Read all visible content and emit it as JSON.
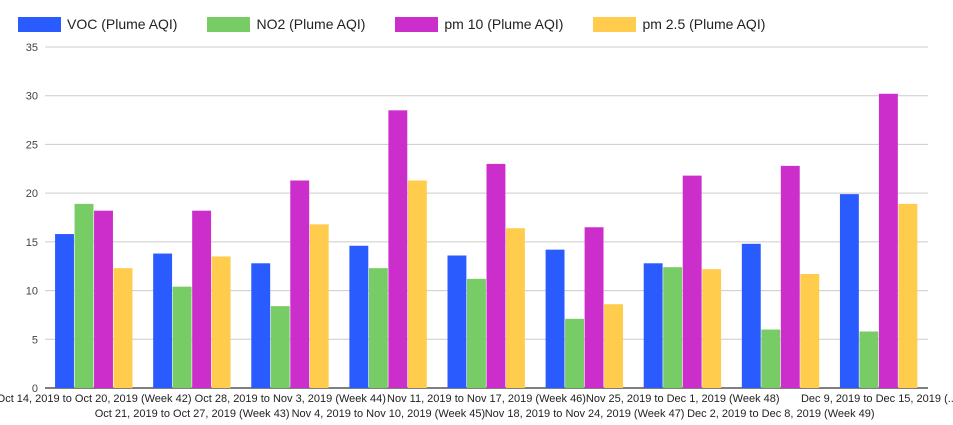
{
  "chart_data": {
    "type": "bar",
    "title": "",
    "xlabel": "",
    "ylabel": "",
    "ylim": [
      0,
      35
    ],
    "yticks": [
      0,
      5,
      10,
      15,
      20,
      25,
      30,
      35
    ],
    "grid": true,
    "legend_position": "top-left",
    "categories": [
      "Oct 14, 2019 to Oct 20, 2019 (Week 42)",
      "Oct 21, 2019 to Oct 27, 2019 (Week 43)",
      "Oct 28, 2019 to Nov 3, 2019 (Week 44)",
      "Nov 4, 2019 to Nov 10, 2019 (Week 45)",
      "Nov 11, 2019 to Nov 17, 2019 (Week 46)",
      "Nov 18, 2019 to Nov 24, 2019 (Week 47)",
      "Nov 25, 2019 to Dec 1, 2019 (Week 48)",
      "Dec 2, 2019 to Dec 8, 2019 (Week 49)",
      "Dec 9, 2019 to Dec 15, 2019 (..."
    ],
    "series": [
      {
        "name": "VOC (Plume AQI)",
        "color": "#2a5bff",
        "values": [
          15.8,
          13.8,
          12.8,
          14.6,
          13.6,
          14.2,
          12.8,
          14.8,
          19.9
        ]
      },
      {
        "name": "NO2 (Plume AQI)",
        "color": "#77cc66",
        "values": [
          18.9,
          10.4,
          8.4,
          12.3,
          11.2,
          7.1,
          12.4,
          6.0,
          5.8
        ]
      },
      {
        "name": "pm 10 (Plume AQI)",
        "color": "#cc2ecc",
        "values": [
          18.2,
          18.2,
          21.3,
          28.5,
          23.0,
          16.5,
          21.8,
          22.8,
          30.2
        ]
      },
      {
        "name": "pm 2.5 (Plume AQI)",
        "color": "#ffcc4d",
        "values": [
          12.3,
          13.5,
          16.8,
          21.3,
          16.4,
          8.6,
          12.2,
          11.7,
          18.9
        ]
      }
    ]
  }
}
